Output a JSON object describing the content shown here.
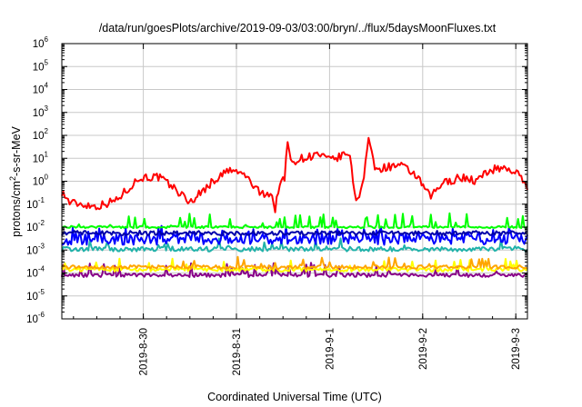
{
  "chart_data": {
    "type": "line",
    "title": "/data/run/goesPlots/archive/2019-09-03/03:00/bryn/../flux/5daysMoonFluxes.txt",
    "xlabel": "Coordinated Universal Time (UTC)",
    "ylabel_parts": {
      "pre": "protons/cm",
      "sup": "2",
      "post": "-s-sr-MeV"
    },
    "yscale": "log",
    "ylim": [
      1e-06,
      1000000.0
    ],
    "yticks": [
      {
        "exp": "-6",
        "value": 1e-06
      },
      {
        "exp": "-5",
        "value": 1e-05
      },
      {
        "exp": "-4",
        "value": 0.0001
      },
      {
        "exp": "-3",
        "value": 0.001
      },
      {
        "exp": "-2",
        "value": 0.01
      },
      {
        "exp": "-1",
        "value": 0.1
      },
      {
        "exp": "0",
        "value": 1
      },
      {
        "exp": "1",
        "value": 10
      },
      {
        "exp": "2",
        "value": 100
      },
      {
        "exp": "3",
        "value": 1000
      },
      {
        "exp": "4",
        "value": 10000
      },
      {
        "exp": "5",
        "value": 100000
      },
      {
        "exp": "6",
        "value": 1000000
      }
    ],
    "ytick_base": "10",
    "xlim": [
      "2019-08-29T03:00",
      "2019-09-03T03:00"
    ],
    "xticks": [
      {
        "label": "2019-8-30",
        "t": "2019-08-30T00:00"
      },
      {
        "label": "2019-8-31",
        "t": "2019-08-31T00:00"
      },
      {
        "label": "2019-9-1",
        "t": "2019-09-01T00:00"
      },
      {
        "label": "2019-9-2",
        "t": "2019-09-02T00:00"
      },
      {
        "label": "2019-9-3",
        "t": "2019-09-03T00:00"
      }
    ],
    "grid": true,
    "legend": false,
    "series": [
      {
        "color": "#880088",
        "base": 8e-05,
        "spike_prob": 0.12,
        "spike_mult": 3.5,
        "noise": 0.08,
        "seed": 11
      },
      {
        "color": "#ffff00",
        "base": 0.00014,
        "spike_prob": 0.12,
        "spike_mult": 3.0,
        "noise": 0.08,
        "seed": 23
      },
      {
        "color": "#ffa500",
        "base": 0.00018,
        "spike_prob": 0.1,
        "spike_mult": 2.5,
        "noise": 0.08,
        "seed": 37
      },
      {
        "color": "#20b2aa",
        "base": 0.0011,
        "spike_prob": 0.1,
        "spike_mult": 2.5,
        "noise": 0.1,
        "seed": 41
      },
      {
        "color": "#0000ff",
        "base": 0.003,
        "spike_prob": 0.15,
        "spike_mult": 3.0,
        "noise": 0.25,
        "seed": 53
      },
      {
        "color": "#0000aa",
        "base": 0.0055,
        "spike_prob": 0.0,
        "spike_mult": 1.0,
        "noise": 0.1,
        "seed": 67
      },
      {
        "color": "#00ff00",
        "base": 0.01,
        "spike_prob": 0.15,
        "spike_mult": 4.0,
        "noise": 0.05,
        "seed": 71
      },
      {
        "color": "#ff0000",
        "profile": [
          [
            "2019-08-29T03:00",
            0.35
          ],
          [
            "2019-08-29T05:00",
            0.12
          ],
          [
            "2019-08-29T12:00",
            0.08
          ],
          [
            "2019-08-29T17:00",
            0.15
          ],
          [
            "2019-08-29T22:00",
            1.0
          ],
          [
            "2019-08-30T00:00",
            1.5
          ],
          [
            "2019-08-30T04:00",
            1.5
          ],
          [
            "2019-08-30T08:00",
            0.5
          ],
          [
            "2019-08-30T12:00",
            0.12
          ],
          [
            "2019-08-30T18:00",
            1.0
          ],
          [
            "2019-08-30T22:00",
            3.0
          ],
          [
            "2019-08-31T02:00",
            2.0
          ],
          [
            "2019-08-31T06:00",
            0.3
          ],
          [
            "2019-08-31T09:00",
            0.3
          ],
          [
            "2019-08-31T10:00",
            0.05
          ],
          [
            "2019-08-31T11:00",
            0.8
          ],
          [
            "2019-08-31T12:30",
            1.2
          ],
          [
            "2019-08-31T13:00",
            70
          ],
          [
            "2019-08-31T14:00",
            7
          ],
          [
            "2019-08-31T17:00",
            10
          ],
          [
            "2019-08-31T21:00",
            15
          ],
          [
            "2019-09-01T00:00",
            8
          ],
          [
            "2019-09-01T03:00",
            12
          ],
          [
            "2019-09-01T05:00",
            18
          ],
          [
            "2019-09-01T07:00",
            0.1
          ],
          [
            "2019-09-01T08:00",
            0.5
          ],
          [
            "2019-09-01T09:00",
            2
          ],
          [
            "2019-09-01T10:00",
            100
          ],
          [
            "2019-09-01T11:00",
            10
          ],
          [
            "2019-09-01T12:00",
            3
          ],
          [
            "2019-09-01T14:00",
            4
          ],
          [
            "2019-09-01T18:00",
            5
          ],
          [
            "2019-09-01T22:00",
            2
          ],
          [
            "2019-09-02T02:00",
            0.2
          ],
          [
            "2019-09-02T05:00",
            0.8
          ],
          [
            "2019-09-02T10:00",
            1.5
          ],
          [
            "2019-09-02T14:00",
            1.0
          ],
          [
            "2019-09-02T17:00",
            3.0
          ],
          [
            "2019-09-02T21:00",
            4.0
          ],
          [
            "2019-09-03T00:00",
            2.5
          ],
          [
            "2019-09-03T03:00",
            0.6
          ]
        ],
        "noise": 0.18,
        "seed": 97
      }
    ]
  }
}
